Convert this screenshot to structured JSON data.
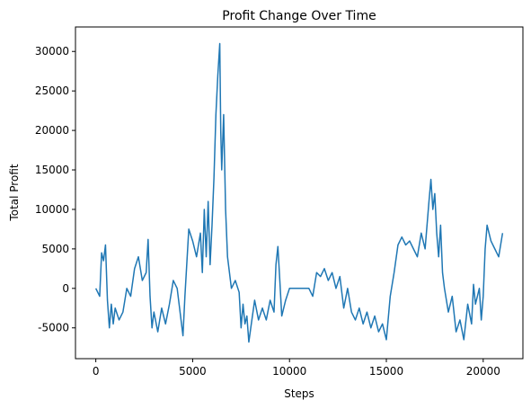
{
  "chart_data": {
    "type": "line",
    "title": "Profit Change Over Time",
    "xlabel": "Steps",
    "ylabel": "Total Profit",
    "x": [
      0,
      200,
      300,
      400,
      500,
      600,
      700,
      800,
      900,
      1000,
      1200,
      1400,
      1600,
      1800,
      2000,
      2200,
      2400,
      2600,
      2700,
      2800,
      2900,
      3000,
      3200,
      3400,
      3600,
      3800,
      4000,
      4200,
      4400,
      4500,
      4600,
      4800,
      5000,
      5200,
      5400,
      5500,
      5600,
      5700,
      5800,
      5900,
      6000,
      6100,
      6200,
      6300,
      6400,
      6450,
      6500,
      6600,
      6700,
      6800,
      6900,
      7000,
      7200,
      7400,
      7500,
      7600,
      7700,
      7800,
      7900,
      8000,
      8200,
      8400,
      8600,
      8800,
      9000,
      9200,
      9300,
      9400,
      9500,
      9600,
      9800,
      10000,
      10500,
      11000,
      11200,
      11400,
      11600,
      11800,
      12000,
      12200,
      12400,
      12600,
      12800,
      13000,
      13200,
      13400,
      13600,
      13800,
      14000,
      14200,
      14400,
      14600,
      14800,
      15000,
      15200,
      15400,
      15600,
      15800,
      16000,
      16200,
      16400,
      16600,
      16800,
      17000,
      17200,
      17300,
      17400,
      17500,
      17600,
      17700,
      17800,
      17900,
      18000,
      18200,
      18400,
      18600,
      18800,
      19000,
      19200,
      19400,
      19500,
      19600,
      19800,
      19900,
      20000,
      20100,
      20200,
      20400,
      20600,
      20800,
      21000
    ],
    "values": [
      0,
      -1000,
      4500,
      3500,
      5500,
      -1500,
      -5000,
      -2000,
      -4500,
      -2500,
      -4000,
      -3000,
      0,
      -1000,
      2500,
      4000,
      1000,
      2000,
      6200,
      -1000,
      -5000,
      -3000,
      -5500,
      -2500,
      -4500,
      -2000,
      1000,
      0,
      -4000,
      -6000,
      -1000,
      7500,
      6000,
      4000,
      7000,
      2000,
      10000,
      4000,
      11000,
      3000,
      8000,
      14000,
      22000,
      27000,
      31000,
      20000,
      15000,
      22000,
      10000,
      4000,
      2000,
      0,
      1000,
      -500,
      -5000,
      -2000,
      -4500,
      -3500,
      -6800,
      -5000,
      -1500,
      -4000,
      -2500,
      -4000,
      -1500,
      -3000,
      3000,
      5300,
      1000,
      -3500,
      -1500,
      0,
      0,
      0,
      -1000,
      2000,
      1500,
      2500,
      1000,
      2000,
      0,
      1500,
      -2500,
      0,
      -3000,
      -4000,
      -2500,
      -4500,
      -3000,
      -5000,
      -3500,
      -5500,
      -4500,
      -6500,
      -1000,
      2000,
      5500,
      6500,
      5500,
      6000,
      5000,
      4000,
      7000,
      5000,
      11000,
      13800,
      10000,
      12000,
      7000,
      4000,
      8000,
      2000,
      0,
      -3000,
      -1000,
      -5500,
      -4000,
      -6500,
      -2000,
      -4500,
      500,
      -2000,
      0,
      -4000,
      -1000,
      5000,
      8000,
      6000,
      5000,
      4000,
      7000
    ],
    "color": "#1f77b4",
    "xlim": [
      -1050,
      22050
    ],
    "xticks": [
      0,
      5000,
      10000,
      15000,
      20000
    ],
    "ylim": [
      -8900,
      33100
    ],
    "yticks": [
      -5000,
      0,
      5000,
      10000,
      15000,
      20000,
      25000,
      30000
    ]
  }
}
